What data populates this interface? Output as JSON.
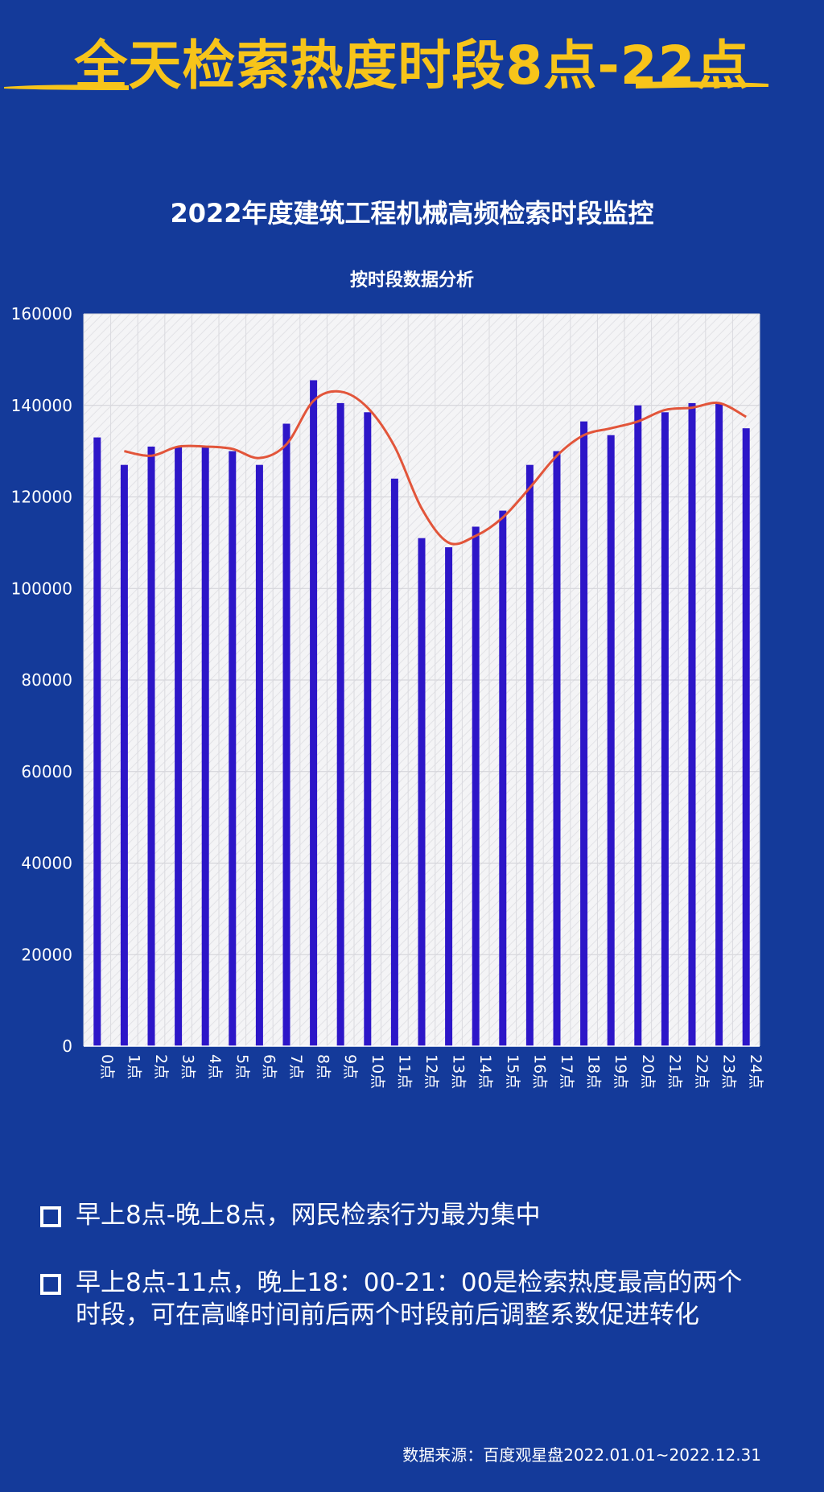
{
  "headline": "全天检索热度时段8点-22点",
  "chart_data": {
    "type": "bar",
    "title": "2022年度建筑工程机械高频检索时段监控",
    "subtitle": "按时段数据分析",
    "categories": [
      "0点",
      "1点",
      "2点",
      "3点",
      "4点",
      "5点",
      "6点",
      "7点",
      "8点",
      "9点",
      "10点",
      "11点",
      "12点",
      "13点",
      "14点",
      "15点",
      "16点",
      "17点",
      "18点",
      "19点",
      "20点",
      "21点",
      "22点",
      "23点",
      "24点"
    ],
    "series": [
      {
        "type": "bar",
        "color": "#2d16c8",
        "values": [
          133000,
          127000,
          131000,
          131000,
          131000,
          130000,
          127000,
          136000,
          145500,
          140500,
          138500,
          124000,
          111000,
          109000,
          113500,
          117000,
          127000,
          130000,
          136500,
          133500,
          140000,
          138500,
          140500,
          140500,
          135000
        ]
      },
      {
        "type": "line",
        "color": "#e2553a",
        "values": [
          null,
          130000,
          129000,
          131000,
          131000,
          130500,
          128500,
          131500,
          141000,
          143000,
          139500,
          131000,
          117500,
          110000,
          111500,
          115500,
          122000,
          129000,
          133500,
          135000,
          136500,
          139000,
          139500,
          140500,
          137500
        ]
      }
    ],
    "ylim": [
      0,
      160000
    ],
    "yticks": [
      0,
      20000,
      40000,
      60000,
      80000,
      100000,
      120000,
      140000,
      160000
    ],
    "grid": true
  },
  "bullets": [
    "早上8点-晚上8点，网民检索行为最为集中",
    "早上8点-11点，晚上18：00-21：00是检索热度最高的两个时段，可在高峰时间前后两个时段前后调整系数促进转化"
  ],
  "source": "数据来源：百度观星盘2022.01.01~2022.12.31"
}
